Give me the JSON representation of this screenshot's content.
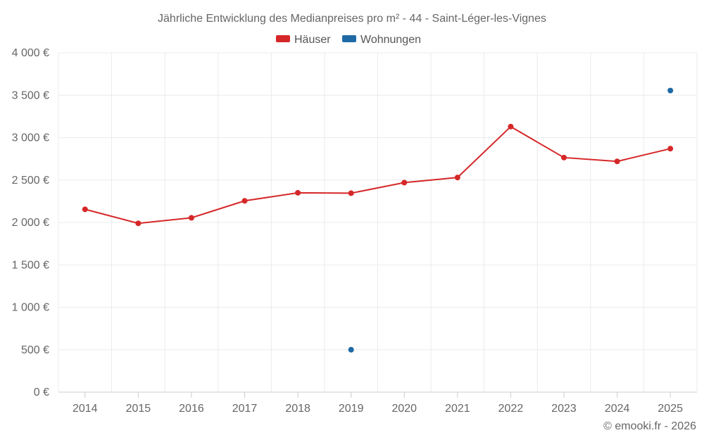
{
  "chart_data": {
    "type": "line",
    "title": "Jährliche Entwicklung des Medianpreises pro m² - 44 - Saint-Léger-les-Vignes",
    "categories": [
      "2014",
      "2015",
      "2016",
      "2017",
      "2018",
      "2019",
      "2020",
      "2021",
      "2022",
      "2023",
      "2024",
      "2025"
    ],
    "ylim": [
      0,
      4000
    ],
    "yticks": [
      0,
      500,
      1000,
      1500,
      2000,
      2500,
      3000,
      3500,
      4000
    ],
    "ytick_labels": [
      "0 €",
      "500 €",
      "1 000 €",
      "1 500 €",
      "2 000 €",
      "2 500 €",
      "3 000 €",
      "3 500 €",
      "4 000 €"
    ],
    "grid": true,
    "legend_position": "top-center",
    "series": [
      {
        "name": "Häuser",
        "color": "#d62728",
        "values": [
          2155,
          1990,
          2055,
          2255,
          2350,
          2345,
          2470,
          2530,
          3130,
          2765,
          2720,
          2870
        ]
      },
      {
        "name": "Wohnungen",
        "color": "#1f6aa5",
        "values": [
          null,
          null,
          null,
          null,
          null,
          500,
          null,
          null,
          null,
          null,
          null,
          3555
        ]
      }
    ]
  },
  "credit": "© emooki.fr - 2026"
}
